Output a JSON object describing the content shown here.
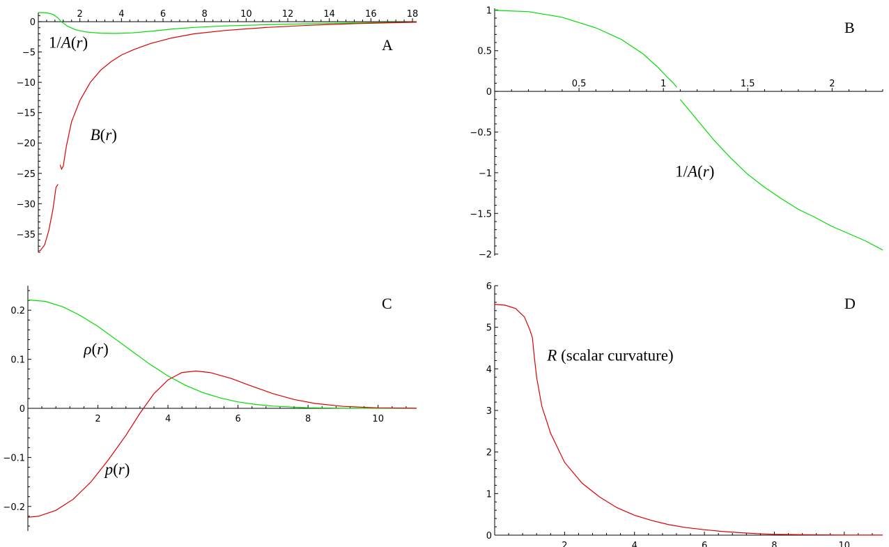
{
  "colors": {
    "green": "#00dd00",
    "red": "#dd0000",
    "axis": "#000000"
  },
  "chart_data": [
    {
      "id": "A",
      "type": "line",
      "panel_label": "A",
      "xlim": [
        0,
        18.2
      ],
      "ylim": [
        -38,
        1.5
      ],
      "x_ticks": [
        2,
        4,
        6,
        8,
        10,
        12,
        14,
        16,
        18
      ],
      "x_tick_labels": [
        "2",
        "4",
        "6",
        "8",
        "10",
        "12",
        "14",
        "16",
        "18"
      ],
      "y_ticks": [
        0,
        -5,
        -10,
        -15,
        -20,
        -25,
        -30,
        -35
      ],
      "y_tick_labels": [
        "0",
        "−5",
        "−10",
        "−15",
        "−20",
        "−25",
        "−30",
        "−35"
      ],
      "grid": false,
      "annotations": [
        {
          "text_parts": [
            "1/",
            "A",
            "(",
            "r",
            ")"
          ],
          "upright": [
            true,
            false,
            true,
            false,
            true
          ],
          "x": 0.5,
          "y": -4.3
        },
        {
          "text_parts": [
            "B",
            "(",
            "r",
            ")"
          ],
          "upright": [
            false,
            true,
            false,
            true
          ],
          "x": 2.5,
          "y": -19.5
        }
      ],
      "series": [
        {
          "name": "1/A(r)",
          "color_key": "green",
          "segments": [
            [
              [
                0,
                1.5
              ],
              [
                0.4,
                1.45
              ],
              [
                0.7,
                1.2
              ],
              [
                0.95,
                0.6
              ],
              [
                1.1,
                0.0
              ],
              [
                1.4,
                -0.75
              ],
              [
                1.8,
                -1.35
              ],
              [
                2.3,
                -1.7
              ],
              [
                3.0,
                -1.9
              ],
              [
                3.7,
                -1.95
              ],
              [
                4.5,
                -1.85
              ],
              [
                5.5,
                -1.55
              ],
              [
                6.5,
                -1.2
              ],
              [
                7.5,
                -0.95
              ],
              [
                9,
                -0.7
              ],
              [
                11,
                -0.5
              ],
              [
                13,
                -0.35
              ],
              [
                15,
                -0.22
              ],
              [
                17,
                -0.12
              ],
              [
                18.2,
                -0.08
              ]
            ]
          ]
        },
        {
          "name": "B(r)",
          "color_key": "red",
          "segments": [
            [
              [
                0,
                -37.8
              ],
              [
                0.1,
                -37.7
              ],
              [
                0.3,
                -36.8
              ],
              [
                0.5,
                -34.5
              ],
              [
                0.7,
                -31
              ],
              [
                0.85,
                -27.3
              ],
              [
                0.95,
                -26.8
              ]
            ],
            [
              [
                1.05,
                -23.6
              ],
              [
                1.12,
                -24.3
              ],
              [
                1.2,
                -23.8
              ],
              [
                1.35,
                -20.5
              ],
              [
                1.6,
                -16.5
              ],
              [
                2.0,
                -13
              ],
              [
                2.5,
                -10
              ],
              [
                3.0,
                -8
              ],
              [
                3.5,
                -6.6
              ],
              [
                4.0,
                -5.5
              ],
              [
                4.6,
                -4.6
              ],
              [
                5.4,
                -3.6
              ],
              [
                6.4,
                -2.7
              ],
              [
                7.5,
                -2.0
              ],
              [
                9,
                -1.45
              ],
              [
                11,
                -0.95
              ],
              [
                13,
                -0.6
              ],
              [
                15,
                -0.35
              ],
              [
                17,
                -0.18
              ],
              [
                18.2,
                -0.1
              ]
            ]
          ]
        }
      ]
    },
    {
      "id": "B",
      "type": "line",
      "panel_label": "B",
      "xlim": [
        0,
        2.3
      ],
      "ylim": [
        -2.02,
        1.02
      ],
      "x_ticks": [
        0.5,
        1,
        1.5,
        2
      ],
      "x_tick_labels": [
        "0.5",
        "1",
        "1.5",
        "2"
      ],
      "y_ticks": [
        1,
        0.5,
        0,
        -0.5,
        -1,
        -1.5,
        -2
      ],
      "y_tick_labels": [
        "1",
        "0.5",
        "0",
        "−0.5",
        "−1",
        "−1.5",
        "−2"
      ],
      "grid": false,
      "annotations": [
        {
          "text_parts": [
            "1/",
            "A",
            "(",
            "r",
            ")"
          ],
          "upright": [
            true,
            false,
            true,
            false,
            true
          ],
          "x": 1.07,
          "y": -1.05
        }
      ],
      "series": [
        {
          "name": "1/A(r)",
          "color_key": "green",
          "segments": [
            [
              [
                0,
                0.995
              ],
              [
                0.2,
                0.98
              ],
              [
                0.4,
                0.91
              ],
              [
                0.6,
                0.78
              ],
              [
                0.75,
                0.64
              ],
              [
                0.88,
                0.46
              ],
              [
                0.97,
                0.29
              ],
              [
                1.02,
                0.18
              ],
              [
                1.06,
                0.1
              ],
              [
                1.08,
                0.05
              ]
            ],
            [
              [
                1.1,
                -0.1
              ],
              [
                1.2,
                -0.35
              ],
              [
                1.3,
                -0.6
              ],
              [
                1.4,
                -0.82
              ],
              [
                1.5,
                -1.02
              ],
              [
                1.6,
                -1.18
              ],
              [
                1.7,
                -1.32
              ],
              [
                1.8,
                -1.45
              ],
              [
                1.9,
                -1.55
              ],
              [
                2.0,
                -1.66
              ],
              [
                2.1,
                -1.75
              ],
              [
                2.2,
                -1.84
              ],
              [
                2.3,
                -1.95
              ]
            ]
          ]
        }
      ]
    },
    {
      "id": "C",
      "type": "line",
      "panel_label": "C",
      "xlim": [
        0,
        11.1
      ],
      "ylim": [
        -0.25,
        0.25
      ],
      "x_ticks": [
        2,
        4,
        6,
        8,
        10
      ],
      "x_tick_labels": [
        "2",
        "4",
        "6",
        "8",
        "10"
      ],
      "y_ticks": [
        0.2,
        0.1,
        0,
        -0.1,
        -0.2
      ],
      "y_tick_labels": [
        "0.2",
        "0.1",
        "0",
        "−0.1",
        "−0.2"
      ],
      "grid": false,
      "annotations": [
        {
          "text_parts": [
            "ρ",
            "(",
            "r",
            ")"
          ],
          "upright": [
            false,
            true,
            false,
            true
          ],
          "x": 1.6,
          "y": 0.11
        },
        {
          "text_parts": [
            "p",
            "(",
            "r",
            ")"
          ],
          "upright": [
            false,
            true,
            false,
            true
          ],
          "x": 2.2,
          "y": -0.135
        }
      ],
      "series": [
        {
          "name": "ρ(r)",
          "color_key": "green",
          "segments": [
            [
              [
                0,
                0.221
              ],
              [
                0.5,
                0.218
              ],
              [
                1,
                0.207
              ],
              [
                1.5,
                0.189
              ],
              [
                2,
                0.167
              ],
              [
                2.5,
                0.141
              ],
              [
                3,
                0.115
              ],
              [
                3.5,
                0.089
              ],
              [
                4,
                0.066
              ],
              [
                4.5,
                0.047
              ],
              [
                5,
                0.032
              ],
              [
                5.5,
                0.021
              ],
              [
                6,
                0.013
              ],
              [
                6.5,
                0.008
              ],
              [
                7,
                0.0045
              ],
              [
                8,
                0.0012
              ],
              [
                9,
                0.0003
              ],
              [
                10,
                0.0001
              ],
              [
                11.1,
                0
              ]
            ]
          ]
        },
        {
          "name": "p(r)",
          "color_key": "red",
          "segments": [
            [
              [
                0,
                -0.222
              ],
              [
                0.3,
                -0.22
              ],
              [
                0.8,
                -0.208
              ],
              [
                1.3,
                -0.185
              ],
              [
                1.8,
                -0.15
              ],
              [
                2.3,
                -0.105
              ],
              [
                2.8,
                -0.055
              ],
              [
                3.2,
                -0.01
              ],
              [
                3.6,
                0.03
              ],
              [
                4.0,
                0.058
              ],
              [
                4.4,
                0.073
              ],
              [
                4.8,
                0.076
              ],
              [
                5.2,
                0.073
              ],
              [
                5.8,
                0.061
              ],
              [
                6.4,
                0.045
              ],
              [
                7.0,
                0.03
              ],
              [
                7.6,
                0.018
              ],
              [
                8.2,
                0.01
              ],
              [
                9,
                0.004
              ],
              [
                10,
                0.001
              ],
              [
                11.1,
                0.0002
              ]
            ]
          ]
        }
      ]
    },
    {
      "id": "D",
      "type": "line",
      "panel_label": "D",
      "xlim": [
        0,
        11.1
      ],
      "ylim": [
        0,
        6
      ],
      "x_ticks": [
        2,
        4,
        6,
        8,
        10
      ],
      "x_tick_labels": [
        "2",
        "4",
        "6",
        "8",
        "10"
      ],
      "y_ticks": [
        6,
        5,
        4,
        3,
        2,
        1,
        0
      ],
      "y_tick_labels": [
        "6",
        "5",
        "4",
        "3",
        "2",
        "1",
        "0"
      ],
      "grid": false,
      "annotations": [
        {
          "text_parts": [
            "R",
            " (scalar curvature)"
          ],
          "upright": [
            false,
            true
          ],
          "x": 1.5,
          "y": 4.2
        }
      ],
      "series": [
        {
          "name": "R",
          "color_key": "red",
          "segments": [
            [
              [
                0,
                5.55
              ],
              [
                0.3,
                5.53
              ],
              [
                0.6,
                5.45
              ],
              [
                0.85,
                5.25
              ],
              [
                1.0,
                4.95
              ],
              [
                1.08,
                4.75
              ],
              [
                1.12,
                4.4
              ],
              [
                1.2,
                3.8
              ],
              [
                1.35,
                3.1
              ],
              [
                1.6,
                2.45
              ],
              [
                2.0,
                1.75
              ],
              [
                2.5,
                1.25
              ],
              [
                3.0,
                0.92
              ],
              [
                3.5,
                0.66
              ],
              [
                4.0,
                0.48
              ],
              [
                4.5,
                0.35
              ],
              [
                5.0,
                0.25
              ],
              [
                5.5,
                0.18
              ],
              [
                6.0,
                0.13
              ],
              [
                6.5,
                0.09
              ],
              [
                7.0,
                0.06
              ],
              [
                7.5,
                0.035
              ],
              [
                8.0,
                0.02
              ],
              [
                9,
                0.008
              ],
              [
                10,
                0.003
              ],
              [
                11.1,
                0.001
              ]
            ]
          ]
        }
      ]
    }
  ]
}
